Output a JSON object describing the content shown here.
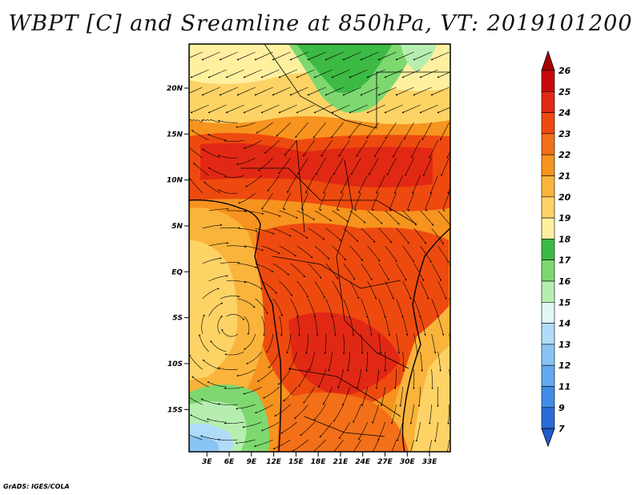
{
  "title": "WBPT [C] and Sreamline at 850hPa, VT: 2019101200",
  "credit": "GrADS: IGES/COLA",
  "map": {
    "lat_ticks": [
      {
        "value": 20,
        "label": "20N"
      },
      {
        "value": 15,
        "label": "15N"
      },
      {
        "value": 10,
        "label": "10N"
      },
      {
        "value": 5,
        "label": "5N"
      },
      {
        "value": 0,
        "label": "EQ"
      },
      {
        "value": -5,
        "label": "5S"
      },
      {
        "value": -10,
        "label": "10S"
      },
      {
        "value": -15,
        "label": "15S"
      }
    ],
    "lon_ticks": [
      {
        "value": 3,
        "label": "3E"
      },
      {
        "value": 6,
        "label": "6E"
      },
      {
        "value": 9,
        "label": "9E"
      },
      {
        "value": 12,
        "label": "12E"
      },
      {
        "value": 15,
        "label": "15E"
      },
      {
        "value": 18,
        "label": "18E"
      },
      {
        "value": 21,
        "label": "21E"
      },
      {
        "value": 24,
        "label": "24E"
      },
      {
        "value": 27,
        "label": "27E"
      },
      {
        "value": 30,
        "label": "30E"
      },
      {
        "value": 33,
        "label": "33E"
      }
    ]
  },
  "colorbar": {
    "levels": [
      {
        "label": "26",
        "color": "#a50000"
      },
      {
        "label": "25",
        "color": "#c80a0a"
      },
      {
        "label": "24",
        "color": "#e12814"
      },
      {
        "label": "23",
        "color": "#ee4a0f"
      },
      {
        "label": "22",
        "color": "#f37018"
      },
      {
        "label": "21",
        "color": "#f7931f"
      },
      {
        "label": "20",
        "color": "#fab43c"
      },
      {
        "label": "19",
        "color": "#fdd366"
      },
      {
        "label": "18",
        "color": "#fff0a0"
      },
      {
        "label": "17",
        "color": "#3cba44"
      },
      {
        "label": "16",
        "color": "#7ed870"
      },
      {
        "label": "15",
        "color": "#b6eeb0"
      },
      {
        "label": "14",
        "color": "#e2f6f4"
      },
      {
        "label": "13",
        "color": "#b0dcfa"
      },
      {
        "label": "12",
        "color": "#8ac4f4"
      },
      {
        "label": "11",
        "color": "#64a8ee"
      },
      {
        "label": "9",
        "color": "#408ce6"
      },
      {
        "label": "7",
        "color": "#2a6cd8"
      }
    ],
    "low_color": "#1f5ad0"
  }
}
